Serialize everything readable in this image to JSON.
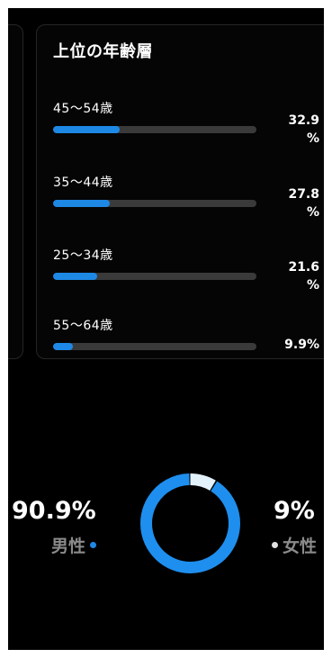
{
  "age_card": {
    "title": "上位の年齢層",
    "rows": [
      {
        "label": "45～54歳",
        "value_text": "32.9\n%",
        "value": 32.9
      },
      {
        "label": "35～44歳",
        "value_text": "27.8\n%",
        "value": 27.8
      },
      {
        "label": "25～34歳",
        "value_text": "21.6\n%",
        "value": 21.6
      },
      {
        "label": "55～64歳",
        "value_text": "9.9%",
        "value": 9.9
      }
    ]
  },
  "gender": {
    "male": {
      "pct_text": "90.9%",
      "label": "男性",
      "value": 90.9
    },
    "female": {
      "pct_text": "9%",
      "label": "女性",
      "value": 9.0
    }
  },
  "colors": {
    "accent": "#1e88e5",
    "donut_male": "#1e8fef",
    "donut_female": "#e3f1fb",
    "track": "#3a3a3a",
    "background": "#000000"
  }
}
